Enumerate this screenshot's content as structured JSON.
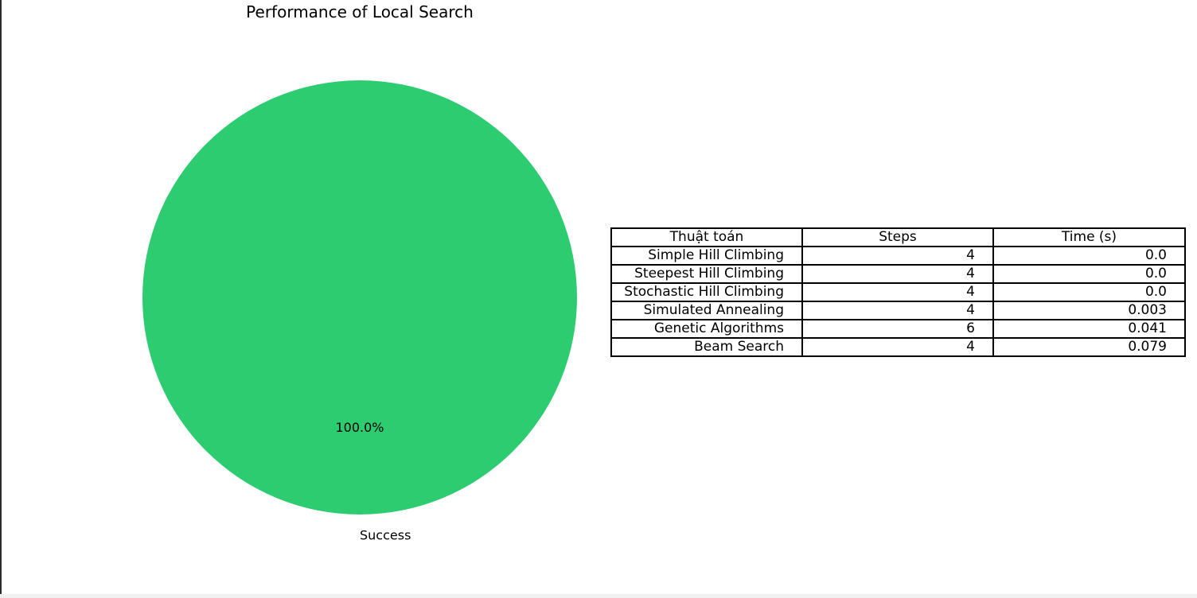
{
  "chart_data": [
    {
      "type": "pie",
      "title": "Performance of Local Search",
      "categories": [
        "Success"
      ],
      "values": [
        100.0
      ],
      "colors": [
        "#2ecc71"
      ],
      "autopct_labels": [
        "100.0%"
      ],
      "legend": false
    },
    {
      "type": "table",
      "columns": [
        "Thuật toán",
        "Steps",
        "Time (s)"
      ],
      "rows": [
        [
          "Simple Hill Climbing",
          "4",
          "0.0"
        ],
        [
          "Steepest Hill Climbing",
          "4",
          "0.0"
        ],
        [
          "Stochastic Hill Climbing",
          "4",
          "0.0"
        ],
        [
          "Simulated Annealing",
          "4",
          "0.003"
        ],
        [
          "Genetic Algorithms",
          "6",
          "0.041"
        ],
        [
          "Beam Search",
          "4",
          "0.079"
        ]
      ]
    }
  ]
}
